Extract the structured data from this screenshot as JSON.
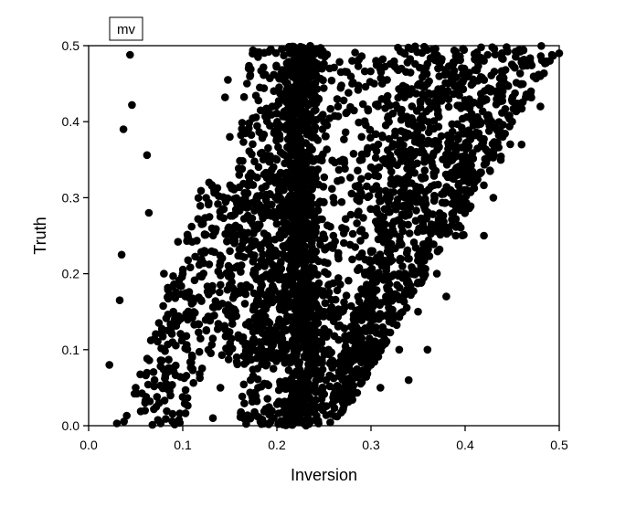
{
  "chart_data": {
    "type": "scatter",
    "title": "",
    "xlabel": "Inversion",
    "ylabel": "Truth",
    "xlim": [
      0.0,
      0.5
    ],
    "ylim": [
      0.0,
      0.5
    ],
    "xticks": [
      "0.0",
      "0.1",
      "0.2",
      "0.3",
      "0.4",
      "0.5"
    ],
    "yticks": [
      "0.0",
      "0.1",
      "0.2",
      "0.3",
      "0.4",
      "0.5"
    ],
    "grid": false,
    "legend": {
      "label": "mv",
      "placement": "top-left"
    },
    "marker_color": "#000000",
    "points": [
      [
        0.022,
        0.08
      ],
      [
        0.03,
        0.003
      ],
      [
        0.033,
        0.165
      ],
      [
        0.035,
        0.225
      ],
      [
        0.037,
        0.39
      ],
      [
        0.044,
        0.488
      ],
      [
        0.046,
        0.422
      ],
      [
        0.062,
        0.356
      ],
      [
        0.064,
        0.28
      ],
      [
        0.08,
        0.2
      ],
      [
        0.095,
        0.242
      ],
      [
        0.11,
        0.242
      ],
      [
        0.12,
        0.265
      ],
      [
        0.128,
        0.32
      ],
      [
        0.132,
        0.01
      ],
      [
        0.14,
        0.275
      ],
      [
        0.145,
        0.432
      ],
      [
        0.148,
        0.455
      ],
      [
        0.155,
        0.24
      ],
      [
        0.15,
        0.145
      ],
      [
        0.15,
        0.38
      ],
      [
        0.16,
        0.33
      ],
      [
        0.17,
        0.47
      ],
      [
        0.172,
        0.06
      ],
      [
        0.18,
        0.485
      ],
      [
        0.14,
        0.05
      ],
      [
        0.125,
        0.125
      ],
      [
        0.11,
        0.09
      ],
      [
        0.09,
        0.15
      ],
      [
        0.07,
        0.06
      ],
      [
        0.06,
        0.03
      ],
      [
        0.05,
        0.05
      ],
      [
        0.1,
        0.2
      ],
      [
        0.21,
        0.1
      ],
      [
        0.215,
        0.2
      ],
      [
        0.225,
        0.3
      ],
      [
        0.23,
        0.4
      ],
      [
        0.22,
        0.48
      ],
      [
        0.24,
        0.05
      ],
      [
        0.25,
        0.15
      ],
      [
        0.26,
        0.25
      ],
      [
        0.27,
        0.35
      ],
      [
        0.28,
        0.45
      ],
      [
        0.3,
        0.2
      ],
      [
        0.32,
        0.3
      ],
      [
        0.34,
        0.4
      ],
      [
        0.36,
        0.45
      ],
      [
        0.38,
        0.35
      ],
      [
        0.4,
        0.42
      ],
      [
        0.42,
        0.48
      ],
      [
        0.44,
        0.44
      ],
      [
        0.46,
        0.48
      ],
      [
        0.48,
        0.46
      ],
      [
        0.5,
        0.49
      ],
      [
        0.48,
        0.42
      ],
      [
        0.46,
        0.37
      ],
      [
        0.45,
        0.4
      ],
      [
        0.43,
        0.3
      ],
      [
        0.41,
        0.33
      ],
      [
        0.4,
        0.28
      ],
      [
        0.39,
        0.25
      ],
      [
        0.37,
        0.2
      ],
      [
        0.35,
        0.15
      ],
      [
        0.33,
        0.1
      ],
      [
        0.31,
        0.05
      ],
      [
        0.3,
        0.08
      ],
      [
        0.28,
        0.12
      ],
      [
        0.27,
        0.02
      ],
      [
        0.26,
        0.3
      ],
      [
        0.25,
        0.4
      ],
      [
        0.24,
        0.46
      ],
      [
        0.2,
        0.35
      ],
      [
        0.19,
        0.25
      ],
      [
        0.185,
        0.15
      ],
      [
        0.18,
        0.05
      ],
      [
        0.175,
        0.2
      ],
      [
        0.195,
        0.42
      ],
      [
        0.205,
        0.28
      ],
      [
        0.235,
        0.18
      ],
      [
        0.245,
        0.35
      ],
      [
        0.255,
        0.1
      ],
      [
        0.265,
        0.42
      ],
      [
        0.29,
        0.38
      ],
      [
        0.31,
        0.26
      ],
      [
        0.33,
        0.2
      ],
      [
        0.35,
        0.3
      ],
      [
        0.37,
        0.42
      ],
      [
        0.39,
        0.48
      ],
      [
        0.41,
        0.4
      ],
      [
        0.43,
        0.36
      ],
      [
        0.47,
        0.44
      ],
      [
        0.49,
        0.48
      ],
      [
        0.44,
        0.38
      ],
      [
        0.42,
        0.25
      ],
      [
        0.38,
        0.17
      ],
      [
        0.36,
        0.1
      ],
      [
        0.34,
        0.06
      ],
      [
        0.32,
        0.15
      ],
      [
        0.3,
        0.34
      ],
      [
        0.28,
        0.48
      ]
    ],
    "regions": [
      {
        "n": 800,
        "ymin": 0.0,
        "ymax": 0.5,
        "xcenter_at_ymin": 0.225,
        "xcenter_at_ymax": 0.228,
        "spread": 0.022
      },
      {
        "n": 900,
        "ymin": 0.0,
        "ymax": 0.5,
        "left_at_ymin": 0.16,
        "left_at_ymax": 0.2,
        "right_at_ymin": 0.26,
        "right_at_ymax": 0.5
      },
      {
        "n": 550,
        "ymin": 0.03,
        "ymax": 0.5,
        "left_at_ymin": 0.255,
        "left_at_ymax": 0.36,
        "right_at_ymin": 0.28,
        "right_at_ymax": 0.5
      },
      {
        "n": 300,
        "ymin": 0.0,
        "ymax": 0.32,
        "left_at_ymin": 0.035,
        "left_at_ymax": 0.12,
        "right_at_ymin": 0.1,
        "right_at_ymax": 0.2
      },
      {
        "n": 450,
        "ymin": 0.08,
        "ymax": 0.5,
        "left_at_ymin": 0.14,
        "left_at_ymax": 0.17,
        "right_at_ymin": 0.2,
        "right_at_ymax": 0.25
      },
      {
        "n": 250,
        "ymin": 0.25,
        "ymax": 0.5,
        "left_at_ymin": 0.28,
        "left_at_ymax": 0.3,
        "right_at_ymin": 0.4,
        "right_at_ymax": 0.5
      }
    ]
  }
}
